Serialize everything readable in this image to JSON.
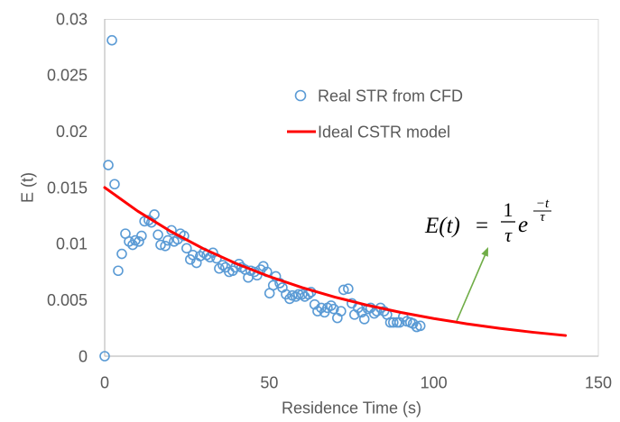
{
  "chart_data": {
    "type": "scatter",
    "title": "",
    "xlabel": "Residence Time (s)",
    "ylabel": "E (t)",
    "xlim": [
      0,
      150
    ],
    "ylim": [
      0,
      0.03
    ],
    "xticks": [
      0,
      50,
      100,
      150
    ],
    "xtick_labels": [
      "0",
      "50",
      "100",
      "150"
    ],
    "yticks": [
      0,
      0.005,
      0.01,
      0.015,
      0.02,
      0.025,
      0.03
    ],
    "ytick_labels": [
      "0",
      "0.005",
      "0.01",
      "0.015",
      "0.02",
      "0.025",
      "0.03"
    ],
    "grid": false,
    "legend_position": "upper-center",
    "series": [
      {
        "name": "Real STR from CFD",
        "color": "#5B9BD5",
        "x": [
          0,
          1.1,
          2.2,
          3.0,
          4.1,
          5.2,
          6.3,
          7.4,
          8.5,
          9.3,
          10.4,
          11.2,
          12.1,
          13.4,
          14.2,
          15.1,
          16.2,
          17.0,
          18.4,
          19.2,
          20.3,
          21.1,
          22.2,
          23.0,
          24.1,
          24.9,
          26.0,
          26.8,
          27.9,
          29.0,
          30.1,
          31.0,
          32.0,
          32.9,
          34.0,
          34.8,
          35.9,
          36.7,
          37.8,
          38.9,
          39.7,
          40.8,
          41.6,
          42.7,
          43.6,
          44.4,
          45.5,
          46.3,
          47.4,
          48.2,
          49.3,
          50.1,
          51.2,
          52.0,
          53.2,
          54.0,
          55.1,
          56.2,
          57.0,
          58.1,
          58.9,
          60.0,
          60.8,
          61.9,
          62.7,
          63.8,
          64.7,
          65.8,
          66.8,
          67.7,
          68.8,
          69.6,
          70.7,
          71.8,
          72.6,
          74.0,
          75.1,
          75.9,
          77.0,
          78.1,
          78.9,
          80.0,
          80.8,
          81.9,
          82.7,
          83.8,
          84.9,
          85.8,
          86.8,
          87.7,
          88.8,
          89.6,
          90.7,
          91.8,
          92.9,
          93.7,
          94.8,
          95.9
        ],
        "y": [
          0,
          0.017,
          0.0281,
          0.0153,
          0.0076,
          0.0091,
          0.0109,
          0.0102,
          0.0099,
          0.0103,
          0.0102,
          0.0107,
          0.012,
          0.0121,
          0.0119,
          0.0126,
          0.0108,
          0.0099,
          0.0098,
          0.0103,
          0.0112,
          0.0102,
          0.0104,
          0.0109,
          0.0107,
          0.0096,
          0.0086,
          0.009,
          0.0083,
          0.0089,
          0.0092,
          0.009,
          0.0088,
          0.0092,
          0.0087,
          0.0078,
          0.0081,
          0.0079,
          0.0075,
          0.0076,
          0.0079,
          0.0082,
          0.0079,
          0.0077,
          0.007,
          0.0076,
          0.0075,
          0.0072,
          0.0077,
          0.008,
          0.0075,
          0.0056,
          0.0063,
          0.0071,
          0.0065,
          0.0061,
          0.0055,
          0.0051,
          0.0054,
          0.0053,
          0.0055,
          0.0055,
          0.0053,
          0.0055,
          0.0057,
          0.0046,
          0.004,
          0.0043,
          0.0039,
          0.0043,
          0.0045,
          0.0042,
          0.0034,
          0.004,
          0.0059,
          0.006,
          0.0047,
          0.0037,
          0.0043,
          0.0039,
          0.0033,
          0.0042,
          0.0043,
          0.0038,
          0.004,
          0.0043,
          0.004,
          0.0037,
          0.003,
          0.003,
          0.003,
          0.003,
          0.0035,
          0.0031,
          0.003,
          0.0029,
          0.0026,
          0.0027
        ]
      },
      {
        "name": "Ideal CSTR model",
        "color": "#FF0000",
        "x": [
          0,
          10,
          20,
          30,
          40,
          50,
          60,
          70,
          80,
          90,
          100,
          110,
          120,
          130,
          140
        ],
        "y": [
          0.015,
          0.01291,
          0.01111,
          0.00956,
          0.00823,
          0.00709,
          0.0061,
          0.00525,
          0.00452,
          0.00389,
          0.00335,
          0.00288,
          0.00248,
          0.00213,
          0.00184
        ]
      }
    ]
  },
  "annotation": {
    "lhs": "E(t)",
    "equals": "=",
    "numerator": "1",
    "denominator": "τ",
    "base": "e",
    "exp_numerator": "−t",
    "exp_denominator": "τ"
  },
  "colors": {
    "text": "#595959",
    "axis": "#BFBFBF",
    "plot_border": "#D9D9D9",
    "arrow": "#70AD47"
  }
}
